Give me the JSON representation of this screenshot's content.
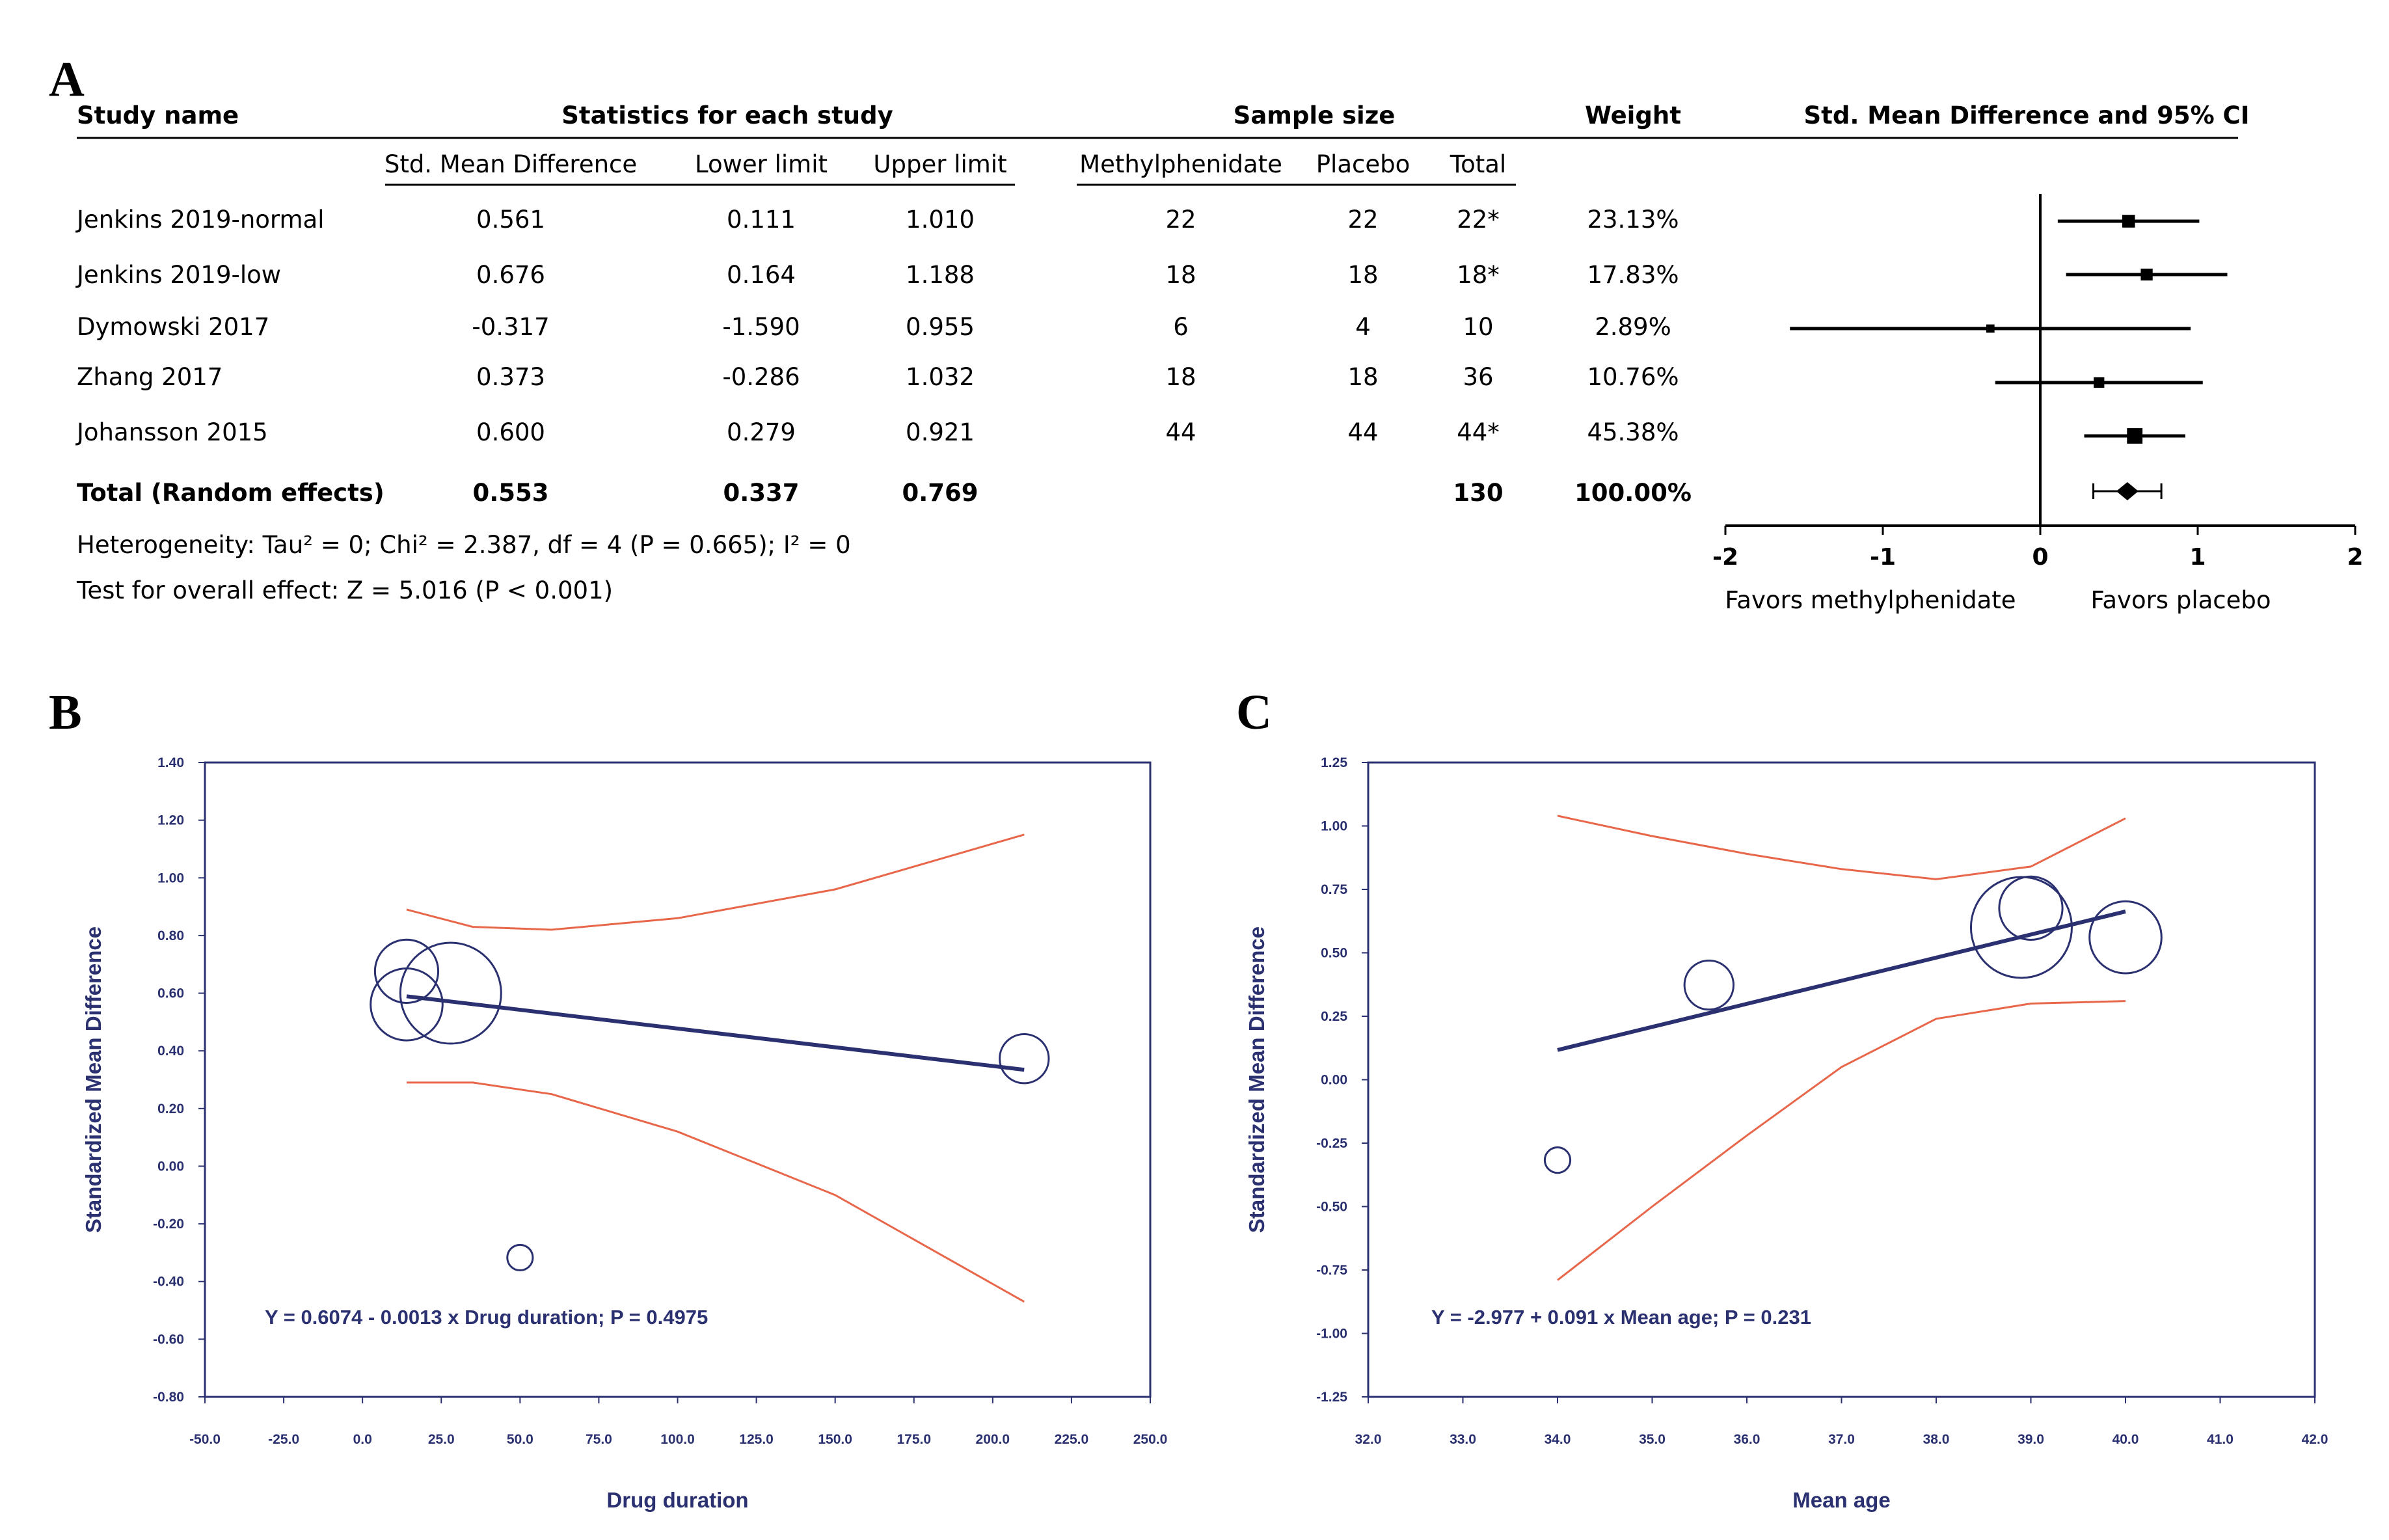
{
  "figure": {
    "panel_a_letter": "A",
    "panel_b_letter": "B",
    "panel_c_letter": "C"
  },
  "table": {
    "header": {
      "study_name": "Study name",
      "statistics": "Statistics for each study",
      "sample_size": "Sample size",
      "weight": "Weight",
      "ci_header": "Std. Mean Difference and 95% CI"
    },
    "subheader": {
      "smd": "Std. Mean Difference",
      "lower": "Lower limit",
      "upper": "Upper limit",
      "mph": "Methylphenidate",
      "placebo": "Placebo",
      "total": "Total"
    },
    "rows": [
      {
        "name": "Jenkins 2019-normal",
        "smd": "0.561",
        "lower": "0.111",
        "upper": "1.010",
        "mph": "22",
        "placebo": "22",
        "total": "22*",
        "weight": "23.13%"
      },
      {
        "name": "Jenkins 2019-low",
        "smd": "0.676",
        "lower": "0.164",
        "upper": "1.188",
        "mph": "18",
        "placebo": "18",
        "total": "18*",
        "weight": "17.83%"
      },
      {
        "name": "Dymowski 2017",
        "smd": "-0.317",
        "lower": "-1.590",
        "upper": "0.955",
        "mph": "6",
        "placebo": "4",
        "total": "10",
        "weight": "2.89%"
      },
      {
        "name": "Zhang 2017",
        "smd": "0.373",
        "lower": "-0.286",
        "upper": "1.032",
        "mph": "18",
        "placebo": "18",
        "total": "36",
        "weight": "10.76%"
      },
      {
        "name": "Johansson 2015",
        "smd": "0.600",
        "lower": "0.279",
        "upper": "0.921",
        "mph": "44",
        "placebo": "44",
        "total": "44*",
        "weight": "45.38%"
      }
    ],
    "total_row": {
      "name": "Total (Random effects)",
      "smd": "0.553",
      "lower": "0.337",
      "upper": "0.769",
      "total": "130",
      "weight": "100.00%"
    },
    "heterogeneity": "Heterogeneity: Tau² = 0; Chi² = 2.387, df = 4 (P = 0.665); I² = 0",
    "overall_effect": "Test for overall effect: Z = 5.016 (P < 0.001)"
  },
  "chart_data": [
    {
      "type": "scatter",
      "subtype": "forest",
      "title": "Std. Mean Difference and 95% CI",
      "studies": [
        "Jenkins 2019-normal",
        "Jenkins 2019-low",
        "Dymowski 2017",
        "Zhang 2017",
        "Johansson 2015",
        "Total (Random effects)"
      ],
      "estimate": [
        0.561,
        0.676,
        -0.317,
        0.373,
        0.6,
        0.553
      ],
      "lower": [
        0.111,
        0.164,
        -1.59,
        -0.286,
        0.279,
        0.337
      ],
      "upper": [
        1.01,
        1.188,
        0.955,
        1.032,
        0.921,
        0.769
      ],
      "weights": [
        23.13,
        17.83,
        2.89,
        10.76,
        45.38,
        100.0
      ],
      "xlim": [
        -2,
        2
      ],
      "xticks": [
        "-2",
        "-1",
        "0",
        "1",
        "2"
      ],
      "left_label": "Favors methylphenidate",
      "right_label": "Favors placebo"
    },
    {
      "type": "scatter",
      "subtype": "meta-regression",
      "title": "",
      "xlabel": "Drug duration",
      "ylabel": "Standardized Mean Difference",
      "xlim": [
        -50,
        250
      ],
      "ylim": [
        -0.8,
        1.4
      ],
      "xticks": [
        "-50.0",
        "-25.0",
        "0.0",
        "25.0",
        "50.0",
        "75.0",
        "100.0",
        "125.0",
        "150.0",
        "175.0",
        "200.0",
        "225.0",
        "250.0"
      ],
      "yticks": [
        "1.40",
        "1.20",
        "1.00",
        "0.80",
        "0.60",
        "0.40",
        "0.20",
        "0.00",
        "-0.20",
        "-0.40",
        "-0.60",
        "-0.80"
      ],
      "points": [
        {
          "x": 14,
          "y": 0.676,
          "weight": 17.83
        },
        {
          "x": 14,
          "y": 0.561,
          "weight": 23.13
        },
        {
          "x": 28,
          "y": 0.6,
          "weight": 45.38
        },
        {
          "x": 50,
          "y": -0.317,
          "weight": 2.89
        },
        {
          "x": 210,
          "y": 0.373,
          "weight": 10.76
        }
      ],
      "regression": {
        "intercept": 0.6074,
        "slope": -0.0013,
        "x_range": [
          14,
          210
        ]
      },
      "ci_upper": [
        [
          14,
          0.89
        ],
        [
          35,
          0.83
        ],
        [
          60,
          0.82
        ],
        [
          100,
          0.86
        ],
        [
          150,
          0.96
        ],
        [
          210,
          1.15
        ]
      ],
      "ci_lower": [
        [
          14,
          0.29
        ],
        [
          35,
          0.29
        ],
        [
          60,
          0.25
        ],
        [
          100,
          0.12
        ],
        [
          150,
          -0.1
        ],
        [
          210,
          -0.47
        ]
      ],
      "equation": "Y = 0.6074 - 0.0013 x Drug duration; P = 0.4975"
    },
    {
      "type": "scatter",
      "subtype": "meta-regression",
      "title": "",
      "xlabel": "Mean age",
      "ylabel": "Standardized Mean Difference",
      "xlim": [
        32,
        42
      ],
      "ylim": [
        -1.25,
        1.25
      ],
      "xticks": [
        "32.0",
        "33.0",
        "34.0",
        "35.0",
        "36.0",
        "37.0",
        "38.0",
        "39.0",
        "40.0",
        "41.0",
        "42.0"
      ],
      "yticks": [
        "1.25",
        "1.00",
        "0.75",
        "0.50",
        "0.25",
        "0.00",
        "-0.25",
        "-0.50",
        "-0.75",
        "-1.00",
        "-1.25"
      ],
      "points": [
        {
          "x": 34.0,
          "y": -0.317,
          "weight": 2.89
        },
        {
          "x": 35.6,
          "y": 0.373,
          "weight": 10.76
        },
        {
          "x": 38.9,
          "y": 0.6,
          "weight": 45.38
        },
        {
          "x": 39.0,
          "y": 0.676,
          "weight": 17.83
        },
        {
          "x": 40.0,
          "y": 0.561,
          "weight": 23.13
        }
      ],
      "regression": {
        "intercept": -2.977,
        "slope": 0.091,
        "x_range": [
          34,
          40
        ]
      },
      "ci_upper": [
        [
          34,
          1.04
        ],
        [
          35,
          0.96
        ],
        [
          36,
          0.89
        ],
        [
          37,
          0.83
        ],
        [
          38,
          0.79
        ],
        [
          39,
          0.84
        ],
        [
          40,
          1.03
        ]
      ],
      "ci_lower": [
        [
          34,
          -0.79
        ],
        [
          35,
          -0.5
        ],
        [
          36,
          -0.22
        ],
        [
          37,
          0.05
        ],
        [
          38,
          0.24
        ],
        [
          39,
          0.3
        ],
        [
          40,
          0.31
        ]
      ],
      "equation": "Y = -2.977 + 0.091 x Mean age; P = 0.231"
    }
  ]
}
